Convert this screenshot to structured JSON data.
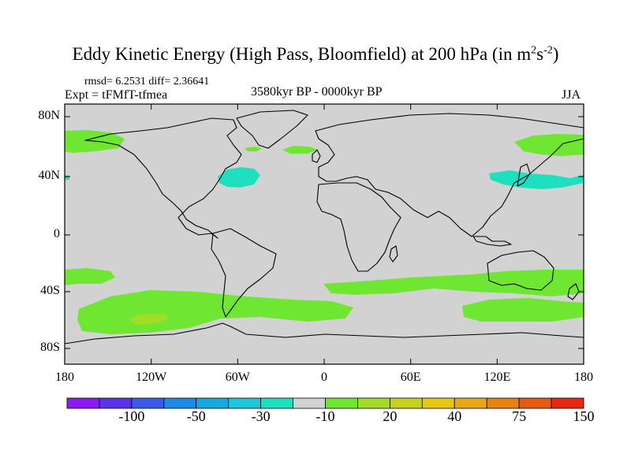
{
  "title": {
    "main": "Eddy Kinetic Energy (High Pass, Bloomfield) at 200 hPa (in m",
    "sup1": "2",
    "mid": "s",
    "sup2": "-2",
    "end": ")"
  },
  "stats": "rmsd= 6.2531 diff= 2.36641",
  "experiment": "Expt = tFMfT-tfmea",
  "period": "3580kyr BP - 0000kyr BP",
  "season": "JJA",
  "axes": {
    "lat_labels": [
      {
        "value": 80,
        "label": "80N"
      },
      {
        "value": 40,
        "label": "40N"
      },
      {
        "value": 0,
        "label": "0"
      },
      {
        "value": -40,
        "label": "40S"
      },
      {
        "value": -80,
        "label": "80S"
      }
    ],
    "lon_labels": [
      {
        "value": -180,
        "label": "180"
      },
      {
        "value": -120,
        "label": "120W"
      },
      {
        "value": -60,
        "label": "60W"
      },
      {
        "value": 0,
        "label": "0"
      },
      {
        "value": 60,
        "label": "60E"
      },
      {
        "value": 120,
        "label": "120E"
      },
      {
        "value": 180,
        "label": "180"
      }
    ]
  },
  "colorbar": {
    "colors": [
      "#8a1cf0",
      "#5a32e8",
      "#3c5ae6",
      "#1e8ae6",
      "#16a8e0",
      "#1ec8d8",
      "#1ee0c0",
      "#d2d2d2",
      "#6ee632",
      "#a0dc28",
      "#c8d21e",
      "#e6c814",
      "#e6a814",
      "#e68214",
      "#e65a14",
      "#e62a10"
    ],
    "labels": [
      {
        "index": 2,
        "label": "-100"
      },
      {
        "index": 4,
        "label": "-50"
      },
      {
        "index": 6,
        "label": "-30"
      },
      {
        "index": 8,
        "label": "-10"
      },
      {
        "index": 10,
        "label": "20"
      },
      {
        "index": 12,
        "label": "40"
      },
      {
        "index": 14,
        "label": "75"
      },
      {
        "index": 16,
        "label": "150"
      }
    ]
  },
  "map_colors": {
    "background": "#d2d2d2",
    "positive": "#6ee632",
    "strong_positive": "#a0dc28",
    "negative": "#1ee0c0",
    "coast": "#000000"
  }
}
